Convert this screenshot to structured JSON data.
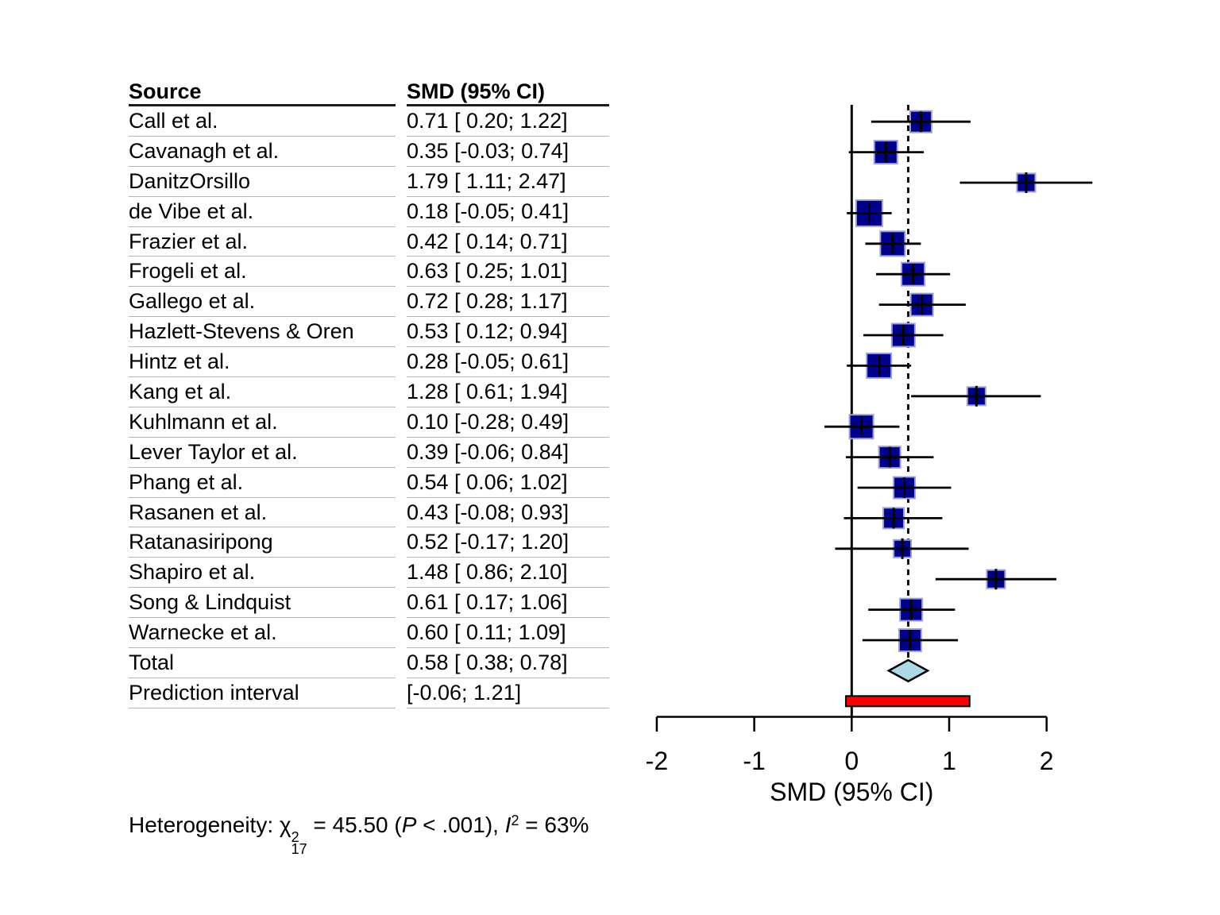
{
  "table": {
    "headers": {
      "source": "Source",
      "smd": "SMD (95% CI)"
    },
    "rows": [
      {
        "source": "Call et al.",
        "smd": "0.71 [ 0.20; 1.22]"
      },
      {
        "source": "Cavanagh et al.",
        "smd": "0.35 [-0.03; 0.74]"
      },
      {
        "source": "DanitzOrsillo",
        "smd": "1.79 [ 1.11; 2.47]"
      },
      {
        "source": "de Vibe et al.",
        "smd": "0.18 [-0.05; 0.41]"
      },
      {
        "source": "Frazier et al.",
        "smd": "0.42 [ 0.14; 0.71]"
      },
      {
        "source": "Frogeli et al.",
        "smd": "0.63 [ 0.25; 1.01]"
      },
      {
        "source": "Gallego et al.",
        "smd": "0.72 [ 0.28; 1.17]"
      },
      {
        "source": "Hazlett-Stevens & Oren",
        "smd": "0.53 [ 0.12; 0.94]"
      },
      {
        "source": "Hintz et al.",
        "smd": "0.28 [-0.05; 0.61]"
      },
      {
        "source": "Kang et al.",
        "smd": "1.28 [ 0.61; 1.94]"
      },
      {
        "source": "Kuhlmann et al.",
        "smd": "0.10 [-0.28; 0.49]"
      },
      {
        "source": "Lever Taylor et al.",
        "smd": "0.39 [-0.06; 0.84]"
      },
      {
        "source": "Phang et al.",
        "smd": "0.54 [ 0.06; 1.02]"
      },
      {
        "source": "Rasanen et al.",
        "smd": "0.43 [-0.08; 0.93]"
      },
      {
        "source": "Ratanasiripong",
        "smd": "0.52 [-0.17; 1.20]"
      },
      {
        "source": "Shapiro et al.",
        "smd": "1.48 [ 0.86; 2.10]"
      },
      {
        "source": "Song & Lindquist",
        "smd": "0.61 [ 0.17; 1.06]"
      },
      {
        "source": "Warnecke et al.",
        "smd": "0.60 [ 0.11; 1.09]"
      },
      {
        "source": "Total",
        "smd": "0.58 [ 0.38; 0.78]"
      },
      {
        "source": "Prediction interval",
        "smd": "[-0.06; 1.21]"
      }
    ]
  },
  "chart_data": {
    "type": "forest",
    "xlabel": "SMD (95% CI)",
    "x_ticks": [
      -2,
      -1,
      0,
      1,
      2
    ],
    "xlim": [
      -2,
      2
    ],
    "zero_line": 0,
    "overall_effect": 0.58,
    "studies": [
      {
        "name": "Call et al.",
        "est": 0.71,
        "lo": 0.2,
        "hi": 1.22,
        "square": 27
      },
      {
        "name": "Cavanagh et al.",
        "est": 0.35,
        "lo": -0.03,
        "hi": 0.74,
        "square": 29
      },
      {
        "name": "DanitzOrsillo",
        "est": 1.79,
        "lo": 1.11,
        "hi": 2.47,
        "square": 23
      },
      {
        "name": "de Vibe et al.",
        "est": 0.18,
        "lo": -0.05,
        "hi": 0.41,
        "square": 33
      },
      {
        "name": "Frazier et al.",
        "est": 0.42,
        "lo": 0.14,
        "hi": 0.71,
        "square": 31
      },
      {
        "name": "Frogeli et al.",
        "est": 0.63,
        "lo": 0.25,
        "hi": 1.01,
        "square": 29
      },
      {
        "name": "Gallego et al.",
        "est": 0.72,
        "lo": 0.28,
        "hi": 1.17,
        "square": 28
      },
      {
        "name": "Hazlett-Stevens & Oren",
        "est": 0.53,
        "lo": 0.12,
        "hi": 0.94,
        "square": 29
      },
      {
        "name": "Hintz et al.",
        "est": 0.28,
        "lo": -0.05,
        "hi": 0.61,
        "square": 31
      },
      {
        "name": "Kang et al.",
        "est": 1.28,
        "lo": 0.61,
        "hi": 1.94,
        "square": 23
      },
      {
        "name": "Kuhlmann et al.",
        "est": 0.1,
        "lo": -0.28,
        "hi": 0.49,
        "square": 30
      },
      {
        "name": "Lever Taylor et al.",
        "est": 0.39,
        "lo": -0.06,
        "hi": 0.84,
        "square": 27
      },
      {
        "name": "Phang et al.",
        "est": 0.54,
        "lo": 0.06,
        "hi": 1.02,
        "square": 27
      },
      {
        "name": "Rasanen et al.",
        "est": 0.43,
        "lo": -0.08,
        "hi": 0.93,
        "square": 26
      },
      {
        "name": "Ratanasiripong",
        "est": 0.52,
        "lo": -0.17,
        "hi": 1.2,
        "square": 22
      },
      {
        "name": "Shapiro et al.",
        "est": 1.48,
        "lo": 0.86,
        "hi": 2.1,
        "square": 23
      },
      {
        "name": "Song & Lindquist",
        "est": 0.61,
        "lo": 0.17,
        "hi": 1.06,
        "square": 28
      },
      {
        "name": "Warnecke et al.",
        "est": 0.6,
        "lo": 0.11,
        "hi": 1.09,
        "square": 28
      }
    ],
    "total": {
      "est": 0.58,
      "lo": 0.38,
      "hi": 0.78
    },
    "prediction_interval": {
      "lo": -0.06,
      "hi": 1.21
    },
    "colors": {
      "square": "#00008B",
      "square_border": "#A0A0D8",
      "diamond": "#ADD8E6",
      "prediction_bar": "#F80000",
      "line": "#000000"
    }
  },
  "footer": {
    "prefix": "Heterogeneity: ",
    "chi": "χ",
    "chi_sup": "2",
    "chi_sub": "17",
    "mid1": " = 45.50 (",
    "p_label": "P",
    "mid2": " < .001), ",
    "i_label": "I",
    "i_sup": "2",
    "tail": " = 63%"
  }
}
